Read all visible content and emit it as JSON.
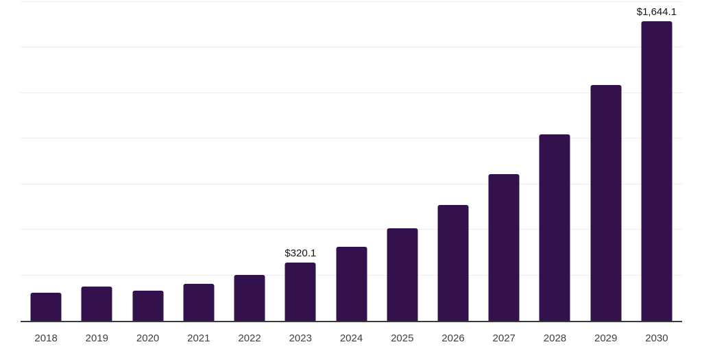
{
  "chart_data": {
    "type": "bar",
    "categories": [
      "2018",
      "2019",
      "2020",
      "2021",
      "2022",
      "2023",
      "2024",
      "2025",
      "2026",
      "2027",
      "2028",
      "2029",
      "2030"
    ],
    "values": [
      155,
      190,
      164,
      205,
      252,
      320.1,
      406,
      508,
      637,
      806,
      1022,
      1293,
      1644.1
    ],
    "values_note": "only 2023 and 2030 are labeled on-chart; other values estimated from bar heights",
    "data_labels": {
      "2023": "$320.1",
      "2030": "$1,644.1"
    },
    "xlabel": "",
    "ylabel": "",
    "ylim": [
      0,
      1750
    ],
    "gridline_step": 250,
    "grid": "horizontal",
    "legend": "none",
    "bar_color": "#33114d",
    "gridline_color": "#ededed",
    "axis_color": "#3a3a3a",
    "tick_label_color": "#404040",
    "data_label_color": "#141414"
  }
}
